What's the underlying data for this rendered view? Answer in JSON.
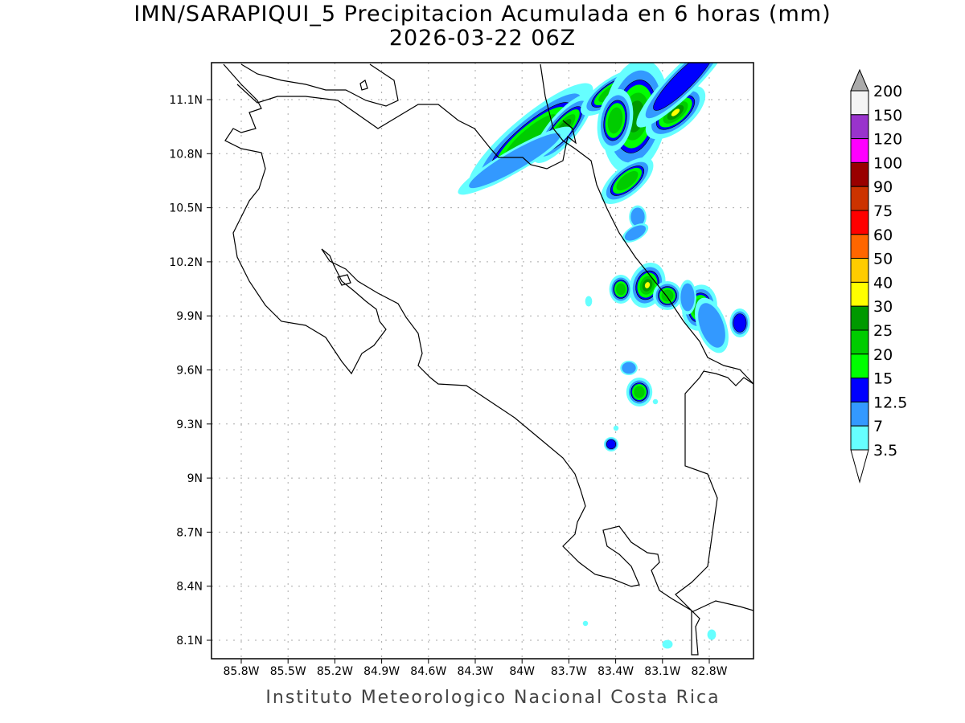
{
  "title": "IMN/SARAPIQUI_5 Precipitacion Acumulada en 6 horas (mm)",
  "subtitle": "2026-03-22 06Z",
  "footer": "Instituto Meteorologico Nacional Costa Rica",
  "x_ticks": [
    "85.8W",
    "85.5W",
    "85.2W",
    "84.9W",
    "84.6W",
    "84.3W",
    "84W",
    "83.7W",
    "83.4W",
    "83.1W",
    "82.8W"
  ],
  "y_ticks": [
    "11.1N",
    "10.8N",
    "10.5N",
    "10.2N",
    "9.9N",
    "9.6N",
    "9.3N",
    "9N",
    "8.7N",
    "8.4N",
    "8.1N"
  ],
  "colorbar": {
    "labels": [
      "200",
      "150",
      "120",
      "100",
      "90",
      "75",
      "60",
      "50",
      "40",
      "30",
      "25",
      "20",
      "15",
      "12.5",
      "7",
      "3.5"
    ],
    "colors": [
      "#f4f4f4",
      "#9933cc",
      "#ff00ff",
      "#990000",
      "#cc3300",
      "#ff0000",
      "#ff6600",
      "#ffcc00",
      "#ffff00",
      "#009900",
      "#00cc00",
      "#00ff00",
      "#0000ff",
      "#3399ff",
      "#66ffff"
    ],
    "over_color": "#aaaaaa",
    "under_color": "#ffffff"
  }
}
